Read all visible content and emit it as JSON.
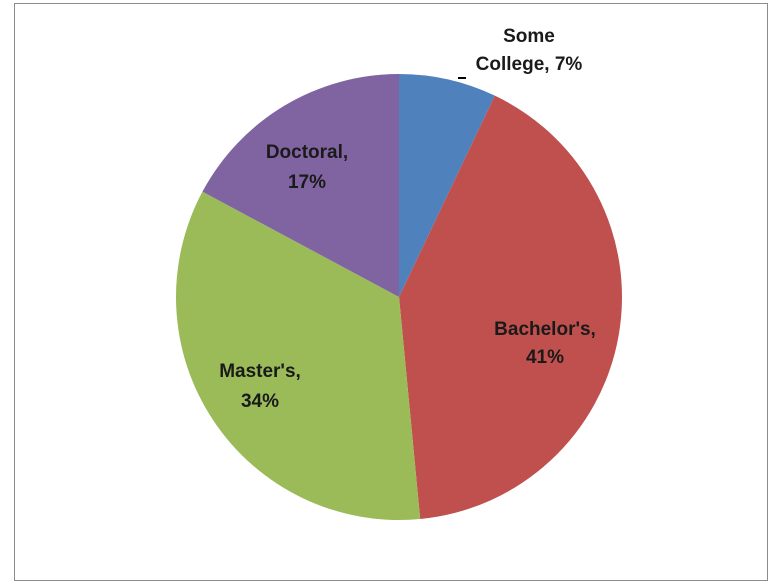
{
  "chart_data": {
    "type": "pie",
    "title": "",
    "slices": [
      {
        "name": "Some College",
        "value": 7,
        "label_lines": [
          "Some",
          "College, 7%"
        ],
        "color": "#4f81bd"
      },
      {
        "name": "Bachelor's",
        "value": 41,
        "label_lines": [
          "Bachelor's,",
          "41%"
        ],
        "color": "#c0504d"
      },
      {
        "name": "Master's",
        "value": 34,
        "label_lines": [
          "Master's,",
          "34%"
        ],
        "color": "#9bbb59"
      },
      {
        "name": "Doctoral",
        "value": 17,
        "label_lines": [
          "Doctoral,",
          "17%"
        ],
        "color": "#8064a2"
      }
    ],
    "start_angle_deg": 0,
    "direction": "clockwise",
    "legend": "none"
  }
}
